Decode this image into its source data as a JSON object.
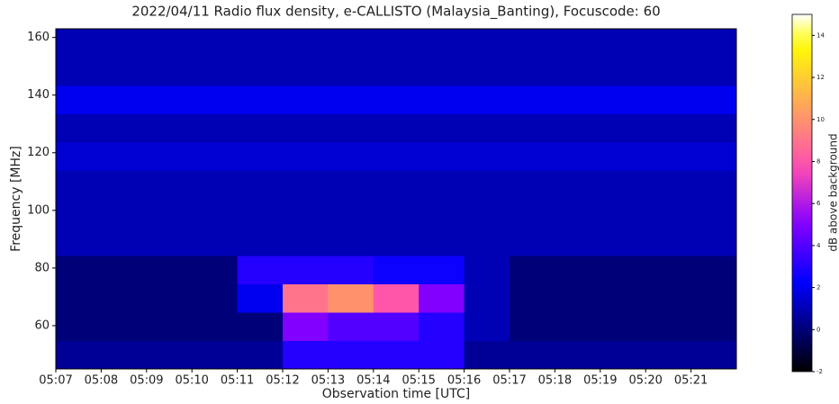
{
  "chart_data": {
    "type": "heatmap",
    "title": "2022/04/11  Radio flux density, e-CALLISTO (Malaysia_Banting), Focuscode: 60",
    "x_label": "Observation time [UTC]",
    "y_label": "Frequency [MHz]",
    "colorbar_label": "dB above background",
    "colormap": "gnuplot2",
    "xlim": [
      "05:07",
      "05:22"
    ],
    "xticks": [
      "05:07",
      "05:08",
      "05:09",
      "05:10",
      "05:11",
      "05:12",
      "05:13",
      "05:14",
      "05:15",
      "05:16",
      "05:17",
      "05:18",
      "05:19",
      "05:20",
      "05:21"
    ],
    "ylim": [
      45,
      163
    ],
    "yticks": [
      60,
      80,
      100,
      120,
      140,
      160
    ],
    "clim": [
      -2,
      15
    ],
    "cticks": [
      -2,
      0,
      2,
      4,
      6,
      8,
      10,
      12,
      14
    ],
    "z": [
      [
        0.5,
        0.5,
        0.5,
        0.5,
        0.5,
        3,
        3,
        3,
        3,
        0.5,
        0.5,
        0.5,
        0.5,
        0.5,
        0.5
      ],
      [
        0,
        0,
        0,
        0,
        0,
        5,
        4,
        4,
        3,
        1,
        0,
        0,
        0,
        0,
        0
      ],
      [
        0,
        0,
        0,
        0,
        2,
        9,
        10,
        8,
        5,
        1,
        0,
        0,
        0,
        0,
        0
      ],
      [
        0,
        0,
        0,
        0,
        3,
        3,
        3,
        2.5,
        2.5,
        1,
        0,
        0,
        0,
        0,
        0
      ],
      [
        1,
        1,
        1,
        1,
        1,
        1,
        1,
        1,
        1,
        1,
        1,
        1,
        1,
        1,
        1
      ],
      [
        1,
        1,
        1,
        1,
        1,
        1,
        1,
        1,
        1,
        1,
        1,
        1,
        1,
        1,
        1
      ],
      [
        1,
        1,
        1,
        1,
        1,
        1,
        1,
        1,
        1,
        1,
        1,
        1,
        1,
        1,
        1
      ],
      [
        1.5,
        1.5,
        1.5,
        1.5,
        1.5,
        1.5,
        1.5,
        1.5,
        1.5,
        1.5,
        1.5,
        1.5,
        1.5,
        1.5,
        1.5
      ],
      [
        1,
        1,
        1,
        1,
        1,
        1,
        1,
        1,
        1,
        1,
        1,
        1,
        1,
        1,
        1
      ],
      [
        2,
        2,
        2,
        2,
        2,
        2,
        2,
        2,
        2,
        2,
        2,
        2,
        2,
        2,
        2
      ],
      [
        1,
        1,
        1,
        1,
        1,
        1,
        1,
        1,
        1,
        1,
        1,
        1,
        1,
        1,
        1
      ],
      [
        1,
        1,
        1,
        1,
        1,
        1,
        1,
        1,
        1,
        1,
        1,
        1,
        1,
        1,
        1
      ]
    ]
  }
}
